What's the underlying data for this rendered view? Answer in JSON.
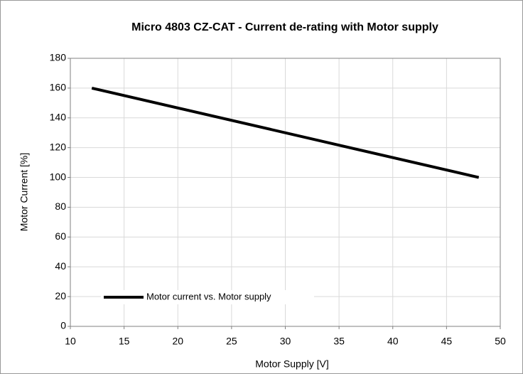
{
  "chart_data": {
    "type": "line",
    "title": "Micro 4803 CZ-CAT - Current de-rating with Motor supply",
    "xlabel": "Motor Supply [V]",
    "ylabel": "Motor Current  [%]",
    "x": [
      12,
      48
    ],
    "series": [
      {
        "name": "Motor current vs. Motor supply",
        "color": "#000000",
        "values": [
          160,
          100
        ]
      }
    ],
    "xlim": [
      10,
      50
    ],
    "xticks": [
      10,
      15,
      20,
      25,
      30,
      35,
      40,
      45,
      50
    ],
    "ylim": [
      0,
      180
    ],
    "yticks": [
      0,
      20,
      40,
      60,
      80,
      100,
      120,
      140,
      160,
      180
    ],
    "grid": true,
    "legend": "lower left"
  }
}
